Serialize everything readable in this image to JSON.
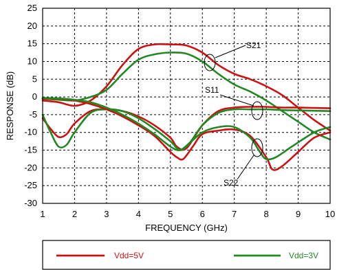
{
  "chart_data": {
    "type": "line",
    "xlabel": "FREQUENCY (GHz)",
    "ylabel": "RESPONSE (dB)",
    "xlim": [
      1,
      10
    ],
    "ylim": [
      -30,
      25
    ],
    "x_ticks": [
      1,
      2,
      3,
      4,
      5,
      6,
      7,
      8,
      9,
      10
    ],
    "y_ticks": [
      25,
      20,
      15,
      10,
      5,
      0,
      -5,
      -10,
      -15,
      -20,
      -25,
      -30
    ],
    "grid": true,
    "legend_placement": "bottom",
    "annotations": [
      "S21",
      "S11",
      "S22"
    ],
    "series": [
      {
        "name": "Vdd=5V",
        "param": "S21",
        "color": "#cc1111",
        "points": [
          [
            1,
            -1
          ],
          [
            1.5,
            -1.5
          ],
          [
            2,
            -2.5
          ],
          [
            2.5,
            -1
          ],
          [
            3,
            3
          ],
          [
            3.5,
            9
          ],
          [
            4,
            13.5
          ],
          [
            4.5,
            14.8
          ],
          [
            5,
            14.8
          ],
          [
            5.5,
            14.5
          ],
          [
            6,
            12.5
          ],
          [
            6.5,
            9
          ],
          [
            7,
            6.5
          ],
          [
            7.5,
            5
          ],
          [
            8,
            3
          ],
          [
            8.5,
            0.5
          ],
          [
            9,
            -3
          ],
          [
            9.5,
            -6.5
          ],
          [
            10,
            -9.5
          ]
        ]
      },
      {
        "name": "Vdd=3V",
        "param": "S21",
        "color": "#228822",
        "points": [
          [
            1,
            -0.5
          ],
          [
            1.5,
            -0.8
          ],
          [
            2,
            -1
          ],
          [
            2.5,
            0
          ],
          [
            3,
            2
          ],
          [
            3.5,
            6.5
          ],
          [
            4,
            10.5
          ],
          [
            4.5,
            12
          ],
          [
            5,
            12.5
          ],
          [
            5.5,
            12.2
          ],
          [
            6,
            10
          ],
          [
            6.5,
            6.5
          ],
          [
            7,
            3.5
          ],
          [
            7.5,
            1.5
          ],
          [
            8,
            -1
          ],
          [
            8.5,
            -4
          ],
          [
            9,
            -7
          ],
          [
            9.5,
            -10
          ],
          [
            10,
            -12
          ]
        ]
      },
      {
        "name": "Vdd=5V",
        "param": "S11",
        "color": "#cc1111",
        "points": [
          [
            1,
            -6
          ],
          [
            1.25,
            -9
          ],
          [
            1.5,
            -11.3
          ],
          [
            1.75,
            -10.5
          ],
          [
            2,
            -7.5
          ],
          [
            2.5,
            -4
          ],
          [
            3,
            -3.5
          ],
          [
            3.5,
            -4
          ],
          [
            4,
            -5.5
          ],
          [
            4.5,
            -8
          ],
          [
            5,
            -11.5
          ],
          [
            5.2,
            -14
          ],
          [
            5.5,
            -14.5
          ],
          [
            6,
            -8
          ],
          [
            6.5,
            -4
          ],
          [
            7,
            -3
          ],
          [
            7.5,
            -2.8
          ],
          [
            8,
            -2.8
          ],
          [
            8.5,
            -3
          ],
          [
            9,
            -3
          ],
          [
            10,
            -3.2
          ]
        ]
      },
      {
        "name": "Vdd=3V",
        "param": "S11",
        "color": "#228822",
        "points": [
          [
            1,
            -5
          ],
          [
            1.25,
            -10
          ],
          [
            1.5,
            -14
          ],
          [
            1.75,
            -13.5
          ],
          [
            2,
            -10
          ],
          [
            2.5,
            -4.5
          ],
          [
            3,
            -3.5
          ],
          [
            3.5,
            -4
          ],
          [
            4,
            -6
          ],
          [
            4.5,
            -9
          ],
          [
            5,
            -12.5
          ],
          [
            5.3,
            -15
          ],
          [
            5.6,
            -13
          ],
          [
            6,
            -8
          ],
          [
            6.5,
            -4.5
          ],
          [
            7,
            -3.5
          ],
          [
            7.5,
            -3.5
          ],
          [
            8,
            -3.5
          ],
          [
            8.5,
            -3.7
          ],
          [
            9,
            -3.8
          ],
          [
            10,
            -4
          ]
        ]
      },
      {
        "name": "Vdd=5V",
        "param": "S22",
        "color": "#cc1111",
        "points": [
          [
            1,
            -0.5
          ],
          [
            1.5,
            -0.5
          ],
          [
            2,
            -1
          ],
          [
            2.5,
            -2
          ],
          [
            3,
            -3.5
          ],
          [
            3.5,
            -5.5
          ],
          [
            4,
            -8
          ],
          [
            4.5,
            -11
          ],
          [
            5,
            -15.5
          ],
          [
            5.2,
            -17
          ],
          [
            5.4,
            -17.5
          ],
          [
            5.7,
            -14
          ],
          [
            6,
            -10.5
          ],
          [
            6.5,
            -9.5
          ],
          [
            7,
            -9.2
          ],
          [
            7.5,
            -11
          ],
          [
            8,
            -17
          ],
          [
            8.2,
            -20.5
          ],
          [
            8.5,
            -19.5
          ],
          [
            9,
            -15.5
          ],
          [
            9.5,
            -11.5
          ],
          [
            10,
            -10
          ]
        ]
      },
      {
        "name": "Vdd=3V",
        "param": "S22",
        "color": "#228822",
        "points": [
          [
            1,
            -0.3
          ],
          [
            1.5,
            -0.4
          ],
          [
            2,
            -0.8
          ],
          [
            2.5,
            -1.5
          ],
          [
            3,
            -3
          ],
          [
            3.5,
            -5
          ],
          [
            4,
            -7.5
          ],
          [
            4.5,
            -10.5
          ],
          [
            5,
            -14
          ],
          [
            5.3,
            -15
          ],
          [
            5.6,
            -13
          ],
          [
            6,
            -10
          ],
          [
            6.5,
            -8.5
          ],
          [
            7,
            -8.5
          ],
          [
            7.5,
            -11.5
          ],
          [
            7.8,
            -15.5
          ],
          [
            8,
            -17.5
          ],
          [
            8.3,
            -17
          ],
          [
            8.8,
            -14
          ],
          [
            9.5,
            -10
          ],
          [
            10,
            -8.5
          ]
        ]
      }
    ],
    "legend": [
      {
        "label": "Vdd=5V",
        "color": "#cc1111"
      },
      {
        "label": "Vdd=3V",
        "color": "#228822"
      }
    ]
  }
}
